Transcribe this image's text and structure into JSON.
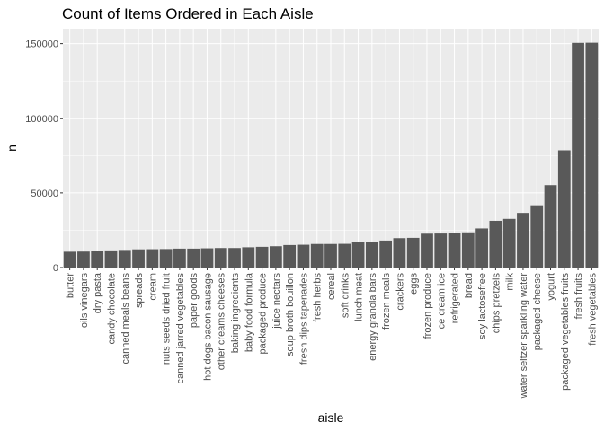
{
  "chart_data": {
    "type": "bar",
    "title": "Count of Items Ordered in Each Aisle",
    "xlabel": "aisle",
    "ylabel": "n",
    "ylim": [
      0,
      160000
    ],
    "yticks": [
      0,
      50000,
      100000,
      150000
    ],
    "ytick_labels": [
      "0",
      "50000",
      "100000",
      "150000"
    ],
    "grid": true,
    "colors": {
      "panel_bg": "#ebebeb",
      "grid_major": "#ffffff",
      "bar_fill": "#595959",
      "tick_color": "#333333"
    },
    "categories": [
      "butter",
      "oils vinegars",
      "dry pasta",
      "candy chocolate",
      "canned meals beans",
      "spreads",
      "cream",
      "nuts seeds dried fruit",
      "canned jarred vegetables",
      "paper goods",
      "hot dogs bacon sausage",
      "other creams cheeses",
      "baking ingredients",
      "baby food formula",
      "packaged produce",
      "juice nectars",
      "soup broth bouillon",
      "fresh dips tapenades",
      "fresh herbs",
      "cereal",
      "soft drinks",
      "lunch meat",
      "energy granola bars",
      "frozen meals",
      "crackers",
      "eggs",
      "frozen produce",
      "ice cream ice",
      "refrigerated",
      "bread",
      "soy lactosefree",
      "chips pretzels",
      "milk",
      "water seltzer sparkling water",
      "packaged cheese",
      "yogurt",
      "packaged vegetables fruits",
      "fresh fruits",
      "fresh vegetables"
    ],
    "values": [
      10600,
      10700,
      11100,
      11500,
      11800,
      12200,
      12300,
      12400,
      12700,
      12700,
      12900,
      13100,
      13100,
      13600,
      13900,
      14300,
      15100,
      15300,
      15800,
      15800,
      15900,
      16900,
      17000,
      18100,
      19700,
      19900,
      22700,
      22800,
      23200,
      23600,
      26200,
      31300,
      32600,
      36600,
      41700,
      55200,
      78500,
      150500,
      150600
    ]
  }
}
